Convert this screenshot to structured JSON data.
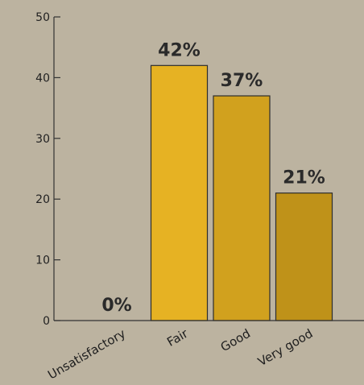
{
  "chart_data": {
    "type": "bar",
    "title": "",
    "xlabel": "",
    "ylabel": "",
    "categories": [
      "Unsatisfactory",
      "Fair",
      "Good",
      "Very good"
    ],
    "values": [
      0,
      42,
      37,
      21
    ],
    "data_labels": [
      "0%",
      "42%",
      "37%",
      "21%"
    ],
    "ylim": [
      0,
      50
    ],
    "yticks": [
      0,
      10,
      20,
      30,
      40,
      50
    ],
    "grid": false,
    "legend": "none",
    "bar_colors": [
      "#e0ad24",
      "#e6b223",
      "#d1a11e",
      "#bf9219"
    ],
    "axis_color": "#333333",
    "background": "#bcb3a0"
  }
}
